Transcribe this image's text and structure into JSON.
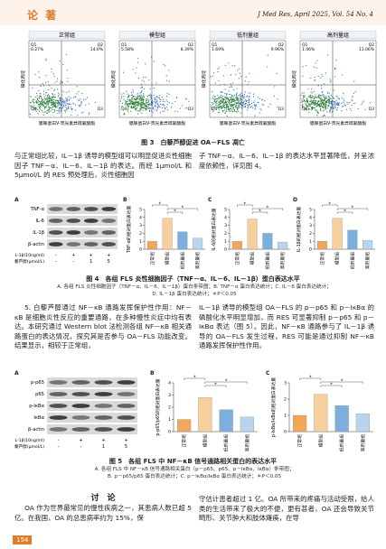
{
  "header": {
    "section": "论 著",
    "journal": "J Med Res, April 2025, Vol. 54 No. 4"
  },
  "figure3": {
    "y_axis_label": "碘化丙啶",
    "x_axis_label": "膜联蛋白V-荧光素异硫氰酸酯",
    "panels": [
      {
        "title": "正常组",
        "quadrants": [
          {
            "label": "Q1",
            "value": "0.27%"
          },
          {
            "label": "Q2",
            "value": "14.0%"
          },
          {
            "label": "Q3"
          },
          {
            "label": "Q4"
          }
        ]
      },
      {
        "title": "模型组",
        "quadrants": [
          {
            "label": "Q1",
            "value": "5.58%"
          },
          {
            "label": "Q2",
            "value": "8.39%"
          },
          {
            "label": "Q3"
          },
          {
            "label": "Q4"
          }
        ]
      },
      {
        "title": "低剂量组",
        "quadrants": [
          {
            "label": "Q1",
            "value": "1.69%"
          },
          {
            "label": "Q2",
            "value": "9.96%"
          },
          {
            "label": "Q3"
          },
          {
            "label": "Q4"
          }
        ]
      },
      {
        "title": "高剂量组",
        "quadrants": [
          {
            "label": "Q1",
            "value": "1.46%"
          },
          {
            "label": "Q2",
            "value": "11.06%"
          },
          {
            "label": "Q3"
          },
          {
            "label": "Q4"
          }
        ]
      }
    ],
    "caption": "图 3　白藜芦醇促进 OA－FLS 凋亡"
  },
  "paragraph1": {
    "left": "与正常组比较，IL－1β 诱导的模型组可以明显促进炎性细胞因子 TNF－α、IL－6、IL－1β 的表达。而经 1μmol/L 和 5μmol/L 的 RES 预处理后，炎性细胞因",
    "right": "子 TNF－α、IL－6、IL－1β 的表达水平显著降低，并呈浓度依赖性，详见图 4。"
  },
  "figure4": {
    "panel_letters": [
      "A",
      "B",
      "C",
      "D"
    ],
    "blot_rows": [
      "TNF-α",
      "IL-6",
      "IL-1β",
      "β-actin"
    ],
    "treatments": [
      {
        "name": "IL-1β(10ng/ml)",
        "marks": [
          "-",
          "+",
          "+",
          "+"
        ]
      },
      {
        "name": "白藜芦醇(μmol/L)",
        "marks": [
          "-",
          "-",
          "1",
          "5"
        ]
      }
    ],
    "caption": "图 4　各组 FLS 炎性细胞因子（TNF－α、IL－6、IL－1β）蛋白表达水平",
    "notes": [
      "A. 各组 FLS 炎性细胞因子（TNF－α、IL－6、IL－1β）蛋白条带图；B. TNF－α 蛋白表达统计；C. IL－6 蛋白表达统计；",
      "D. IL－1β 蛋白表达统计；＊P＜0.05"
    ]
  },
  "section5": {
    "left": "5. 白藜芦醇通过 NF－κB 通路发挥保护性作用：NF－κB 是细胞炎性反应的重要通路，在多种慢性炎症中均有表达。本研究通过 Western blot 法检测各组 NF－κB 相关通路蛋白的表达情况，探究其是否参与 OA－FLS 功能改变。结果显示，相较于正常组，",
    "right": "IL－1β 诱导的模型组 OA－FLS 的 p－p65 和 p－IκBα 的磷酸化水平明显增加，而 RES 可显著抑制 p－p65 和 p－IκBα 表达（图 5）。因此，NF－κB 通路参与了 IL－1β 诱导的 OA－FLS 发生过程，RES 可能是通过抑制 NF－κB 通路发挥保护性作用。"
  },
  "figure5": {
    "panel_letters": [
      "A",
      "B",
      "C"
    ],
    "blot_rows": [
      "p-p65",
      "p65",
      "p-IκBα",
      "IκBα",
      "β-actin"
    ],
    "treatments": [
      {
        "name": "IL-1β(10ng/ml)",
        "marks": [
          "-",
          "+",
          "+",
          "+"
        ]
      },
      {
        "name": "白藜芦醇(μmol/L)",
        "marks": [
          "-",
          "-",
          "1",
          "5"
        ]
      }
    ],
    "caption": "图 5　各组 FLS 中 NF－κB 信号通路相关蛋白的表达水平",
    "notes": [
      "A. 各组 FLS 中 NF－κB 信号通路相关蛋白（p－p65、p65、p－IκBα、IκBα）条带图；",
      "B. p－p65/p65 蛋白表达统计；C. p－IκBα/IκBα 蛋白表达统计；＊P＜0.05"
    ]
  },
  "discussion": {
    "heading": "讨　论",
    "left": "OA 作为世界最常见的慢性疾病之一，其患病人数已超 5 亿。在我国，OA 的总患病率约为 15%，保",
    "right": "守估计患者超过 1 亿。OA 所带来的疼痛与活动受限，给人类的生活带来了极大的不便，更有甚者，OA 还会导致关节畸形、关节肿大和肢体瘫痪，在导"
  },
  "page_number": "154",
  "chart_data": [
    {
      "type": "bar",
      "ylabel": "TNF-α的相对蛋白表达量",
      "categories": [
        "正常组",
        "模型组",
        "低剂量组",
        "高剂量组"
      ],
      "values": [
        1.0,
        3.9,
        2.2,
        1.4
      ],
      "colors": [
        "#f2a65a",
        "#f7cf9c",
        "#7bb0de",
        "#b7d5ee"
      ],
      "ylim": [
        0,
        5
      ],
      "yticks": [
        0,
        1,
        2,
        3,
        4,
        5
      ],
      "significance": [
        "*",
        "*",
        "*"
      ]
    },
    {
      "type": "bar",
      "ylabel": "IL-6的相对蛋白表达量",
      "categories": [
        "正常组",
        "模型组",
        "低剂量组",
        "高剂量组"
      ],
      "values": [
        1.0,
        3.8,
        2.0,
        0.9
      ],
      "colors": [
        "#f2a65a",
        "#f7cf9c",
        "#7bb0de",
        "#b7d5ee"
      ],
      "ylim": [
        0,
        5
      ],
      "yticks": [
        0,
        1,
        2,
        3,
        4,
        5
      ],
      "significance": [
        "*",
        "*",
        "*"
      ]
    },
    {
      "type": "bar",
      "ylabel": "IL-1β的相对蛋白表达量",
      "categories": [
        "正常组",
        "模型组",
        "低剂量组",
        "高剂量组"
      ],
      "values": [
        1.0,
        3.9,
        2.4,
        1.1
      ],
      "colors": [
        "#f2a65a",
        "#f7cf9c",
        "#7bb0de",
        "#b7d5ee"
      ],
      "ylim": [
        0,
        5
      ],
      "yticks": [
        0,
        1,
        2,
        3,
        4,
        5
      ],
      "significance": [
        "*",
        "*",
        "*"
      ]
    },
    {
      "type": "bar",
      "ylabel": "p-p65/p65的相对蛋白表达量",
      "categories": [
        "正常组",
        "模型组",
        "低剂量组",
        "高剂量组"
      ],
      "values": [
        1.0,
        2.8,
        1.8,
        1.2
      ],
      "colors": [
        "#f2a65a",
        "#f7cf9c",
        "#7bb0de",
        "#b7d5ee"
      ],
      "ylim": [
        0,
        4
      ],
      "yticks": [
        0,
        1,
        2,
        3,
        4
      ],
      "significance": [
        "*",
        "*",
        "*"
      ]
    },
    {
      "type": "bar",
      "ylabel": "p-IκBα/IκBα的相对蛋白表达量",
      "categories": [
        "正常组",
        "模型组",
        "低剂量组",
        "高剂量组"
      ],
      "values": [
        1.0,
        2.3,
        1.6,
        1.1
      ],
      "colors": [
        "#f2a65a",
        "#f7cf9c",
        "#7bb0de",
        "#b7d5ee"
      ],
      "ylim": [
        0,
        3
      ],
      "yticks": [
        0,
        1,
        2,
        3
      ],
      "significance": [
        "*",
        "*",
        "*"
      ]
    }
  ]
}
